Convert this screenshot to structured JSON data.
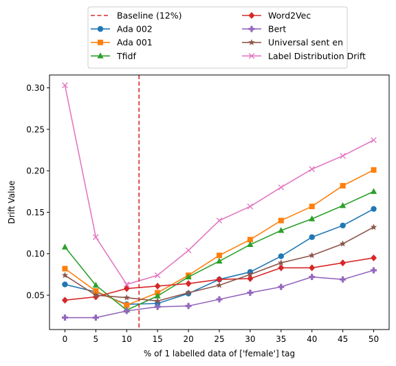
{
  "chart_data": {
    "type": "line",
    "title": "",
    "xlabel": "% of 1 labelled data of ['female'] tag",
    "ylabel": "Drift Value",
    "x": [
      0,
      5,
      10,
      15,
      20,
      25,
      30,
      35,
      40,
      45,
      50
    ],
    "xlim": [
      -2.5,
      52.5
    ],
    "ylim": [
      0.0086,
      0.3155
    ],
    "xticks": [
      0,
      5,
      10,
      15,
      20,
      25,
      30,
      35,
      40,
      45,
      50
    ],
    "yticks": [
      0.05,
      0.1,
      0.15,
      0.2,
      0.25,
      0.3
    ],
    "ytick_labels": [
      "0.05",
      "0.10",
      "0.15",
      "0.20",
      "0.25",
      "0.30"
    ],
    "grid": false,
    "legend_position": "top-center",
    "baseline": {
      "name": "Baseline (12%)",
      "x": 12,
      "color": "#d62728",
      "style": "dashed"
    },
    "series": [
      {
        "name": "Ada 002",
        "color": "#1f77b4",
        "marker": "circle",
        "values": [
          0.063,
          0.054,
          0.039,
          0.04,
          0.052,
          0.069,
          0.078,
          0.097,
          0.12,
          0.134,
          0.154
        ]
      },
      {
        "name": "Ada 001",
        "color": "#ff7f0e",
        "marker": "square",
        "values": [
          0.082,
          0.055,
          0.038,
          0.053,
          0.074,
          0.098,
          0.117,
          0.14,
          0.157,
          0.182,
          0.201
        ]
      },
      {
        "name": "Tfidf",
        "color": "#2ca02c",
        "marker": "triangle",
        "values": [
          0.108,
          0.062,
          0.032,
          0.049,
          0.072,
          0.091,
          0.111,
          0.128,
          0.142,
          0.158,
          0.175
        ]
      },
      {
        "name": "Word2Vec",
        "color": "#d62728",
        "marker": "diamond",
        "values": [
          0.044,
          0.048,
          0.058,
          0.061,
          0.064,
          0.069,
          0.07,
          0.083,
          0.083,
          0.089,
          0.095
        ]
      },
      {
        "name": "Bert",
        "color": "#9467bd",
        "marker": "plus",
        "values": [
          0.023,
          0.023,
          0.031,
          0.036,
          0.037,
          0.045,
          0.053,
          0.06,
          0.072,
          0.069,
          0.08
        ]
      },
      {
        "name": "Universal sent en",
        "color": "#8c564b",
        "marker": "star",
        "values": [
          0.074,
          0.05,
          0.047,
          0.043,
          0.053,
          0.062,
          0.075,
          0.089,
          0.098,
          0.112,
          0.132
        ]
      },
      {
        "name": "Label Distribution Drift",
        "color": "#e377c2",
        "marker": "x",
        "values": [
          0.303,
          0.12,
          0.063,
          0.074,
          0.104,
          0.14,
          0.157,
          0.18,
          0.202,
          0.218,
          0.237
        ]
      }
    ]
  }
}
